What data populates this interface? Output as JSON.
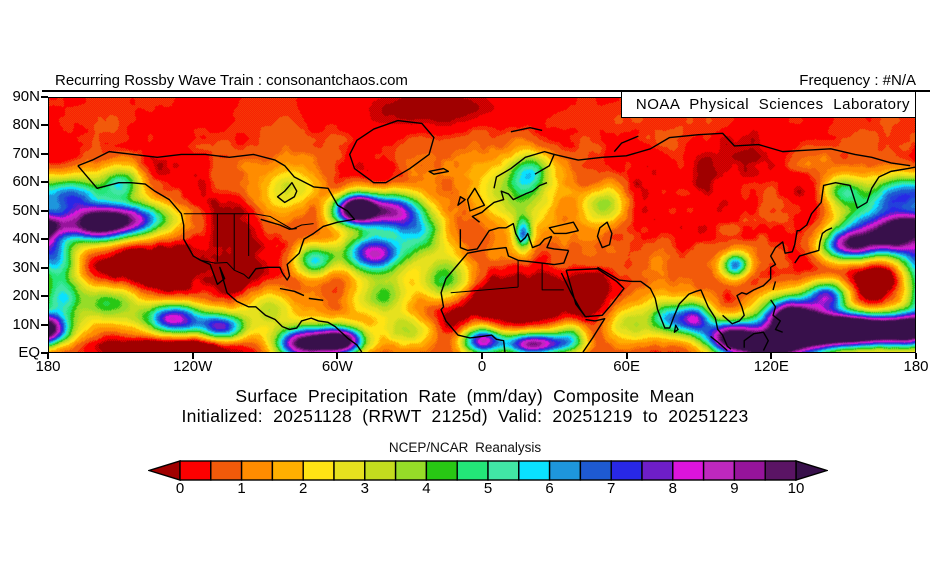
{
  "header": {
    "left": "Recurring Rossby Wave Train : consonantchaos.com",
    "right": "Frequency : #N/A"
  },
  "banner": {
    "text": "NOAA Physical Sciences Laboratory"
  },
  "titles": {
    "line1": "Surface Precipitation Rate (mm/day) Composite Mean",
    "line2": "Initialized: 20251128 (RRWT 2125d) Valid: 20251219 to 20251223",
    "source": "NCEP/NCAR Reanalysis"
  },
  "axes": {
    "lat_labels": [
      {
        "label": "90N",
        "lat": 90
      },
      {
        "label": "80N",
        "lat": 80
      },
      {
        "label": "70N",
        "lat": 70
      },
      {
        "label": "60N",
        "lat": 60
      },
      {
        "label": "50N",
        "lat": 50
      },
      {
        "label": "40N",
        "lat": 40
      },
      {
        "label": "30N",
        "lat": 30
      },
      {
        "label": "20N",
        "lat": 20
      },
      {
        "label": "10N",
        "lat": 10
      },
      {
        "label": "EQ",
        "lat": 0
      }
    ],
    "lon_labels": [
      {
        "label": "180",
        "lon": -180
      },
      {
        "label": "120W",
        "lon": -120
      },
      {
        "label": "60W",
        "lon": -60
      },
      {
        "label": "0",
        "lon": 0
      },
      {
        "label": "60E",
        "lon": 60
      },
      {
        "label": "120E",
        "lon": 120
      },
      {
        "label": "180",
        "lon": 180
      }
    ]
  },
  "chart_data": {
    "type": "heatmap",
    "title": "Surface Precipitation Rate (mm/day) Composite Mean",
    "subtitle": "Initialized: 20251128 (RRWT 2125d) Valid: 20251219 to 20251223",
    "source": "NCEP/NCAR Reanalysis",
    "units": "mm/day",
    "lon_range": [
      -180,
      180
    ],
    "lat_range": [
      0,
      90
    ],
    "colorbar": {
      "ticks": [
        0,
        1,
        2,
        3,
        4,
        5,
        6,
        7,
        8,
        9,
        10
      ],
      "segment_step": 0.5,
      "under_color": "#A00000",
      "over_color": "#38104B",
      "segment_colors": [
        "#FC0000",
        "#F25A0A",
        "#FF8C00",
        "#FFAF00",
        "#FFE414",
        "#E6E11E",
        "#C3DC1E",
        "#96DC28",
        "#28C814",
        "#23E678",
        "#41E6A5",
        "#0AE1FF",
        "#1E96DC",
        "#1E5AD2",
        "#2828E6",
        "#6E1EC8",
        "#DC14DC",
        "#BE28BE",
        "#96149B",
        "#5A1464"
      ]
    },
    "field_base_mm_day": 0.45,
    "feature_format": "[lon, lat, sigma_lon_deg, sigma_lat_deg, amplitude_mm_day]",
    "features": [
      [
        -20,
        86,
        25,
        6,
        -0.8
      ],
      [
        -150,
        47,
        14,
        4.5,
        9.5
      ],
      [
        -163,
        44,
        8,
        4,
        5
      ],
      [
        -137,
        28,
        15,
        7,
        -1.1
      ],
      [
        -155,
        18,
        8,
        5,
        3.8
      ],
      [
        -128,
        12,
        9,
        4,
        7.5
      ],
      [
        -108,
        9,
        7,
        3.5,
        6.5
      ],
      [
        -122,
        2,
        12,
        3,
        -2.2
      ],
      [
        -147,
        2,
        13,
        3,
        -1.6
      ],
      [
        -75,
        3,
        8,
        4,
        9.5
      ],
      [
        -59,
        4,
        7,
        3.5,
        10.5
      ],
      [
        -88,
        15,
        7,
        5,
        2.5
      ],
      [
        -70,
        33,
        6,
        4,
        5.5
      ],
      [
        -45,
        35,
        9,
        5,
        8
      ],
      [
        -38,
        50,
        10,
        4.5,
        8.5
      ],
      [
        -52,
        51,
        5,
        3.5,
        10
      ],
      [
        -25,
        42,
        7,
        5,
        4
      ],
      [
        -15,
        25,
        7,
        6,
        4.5
      ],
      [
        -40,
        20,
        9,
        5,
        3.5
      ],
      [
        -30,
        8,
        8,
        4,
        3
      ],
      [
        -100,
        40,
        13,
        8,
        -0.9
      ],
      [
        -104,
        26,
        6,
        5,
        -1.4
      ],
      [
        -42,
        62,
        6,
        4,
        -0.9
      ],
      [
        5,
        20,
        22,
        8,
        -1.7
      ],
      [
        45,
        24,
        9,
        6,
        -1.3
      ],
      [
        0,
        4,
        6,
        3.5,
        8
      ],
      [
        22,
        3,
        9,
        3,
        9.5
      ],
      [
        37,
        5,
        5,
        4,
        4
      ],
      [
        10,
        55,
        13,
        8,
        3.2
      ],
      [
        20,
        64,
        6,
        5,
        4.2
      ],
      [
        17,
        42,
        2.5,
        4,
        5
      ],
      [
        50,
        52,
        7,
        5,
        3
      ],
      [
        60,
        10,
        8,
        5,
        2.5
      ],
      [
        77,
        12,
        5,
        4,
        4.5
      ],
      [
        88,
        12,
        5,
        4,
        6.5
      ],
      [
        103,
        6,
        8,
        4,
        8.5
      ],
      [
        120,
        2,
        12,
        3.5,
        10.5
      ],
      [
        128,
        13,
        8,
        5,
        9.5
      ],
      [
        141,
        8,
        14,
        4,
        10.5
      ],
      [
        160,
        8,
        13,
        4,
        11
      ],
      [
        178,
        8,
        7,
        4,
        8
      ],
      [
        143,
        20,
        6,
        4,
        7
      ],
      [
        152,
        38,
        8,
        4,
        8.5
      ],
      [
        170,
        40,
        9,
        4,
        8
      ],
      [
        178,
        45,
        7,
        3,
        6.5
      ],
      [
        160,
        47,
        11,
        5,
        4
      ],
      [
        168,
        26,
        9,
        5,
        -1
      ],
      [
        105,
        31,
        4,
        3,
        6
      ],
      [
        -150,
        60,
        6,
        4,
        4.5
      ],
      [
        -170,
        56,
        8,
        5,
        5.5
      ],
      [
        172,
        56,
        8,
        5,
        5
      ],
      [
        150,
        57,
        6,
        4,
        4.5
      ],
      [
        -80,
        57,
        9,
        7,
        2.2
      ],
      [
        -60,
        50,
        5,
        4,
        3
      ],
      [
        -178,
        33,
        7,
        5,
        5.5
      ],
      [
        -175,
        20,
        7,
        6,
        5.5
      ]
    ]
  },
  "map_overlay": {
    "coastlines": [
      "M -168 24 L -160 32 L -151 30 L -146 30 L -140 30.5 L -136 33 L -130 36 L -125 41 L -124 45 L -124 50 L -120 56 L -117 57.5 L -113 59 L -110 66 L -107 64 L -109 60 L -106 69 L -102 72 L -97 74 L -94 74 L -90 77 L -86 78.5 L -83 81 L -80 82 L -77 81.5 L -75 79 L -71 78 L -68 79 L -64 79.5 L -61 81 L -56 85 L -52 87.5 L -50 90",
      "M -97 64 L -94 60.5 L -89 60 L -84 60 L -83 62 L -81 64.5 L -80 63 L -81 59 L -76 55 L -74 50 L -70 48 L -66 45.5 L -60 44 L -53 43 L -56 40 L -60 38 L -64 32 L -70 31.5 L -78 28 L -82 24 L -86 22 L -95 20 L -105 21 L -115 20 L -125 20 L -135 21 L -145 20 L -155 19 L -162 22 L -168 24",
      "M -85 35 L -82 33 L -79 30 L -77 33 L -78 35 L -82 37 Z",
      "M -92 43 L -88 44 L -84 45 L -80 46.5 L -77 46.2",
      "M -84 67.5 L -78 68.5 L -74 70 M -72 71 L -66 71.7",
      "M -45 30 L -53 25 L -55 20 L -52 15 L -45 11 L -35 8 L -25 9 L -20 14 L -22 20 L -30 25 L -40 30 Z",
      "M -22 26 L -16 25 L -14 26 L -20 27 Z",
      "M -5 40 L -6 36 L -3 32 L -1 35 L 1 38 L -5 40 Z M -10 38 L -7 36 L -9 35 Z",
      "M -9 46.5 L -9 53 L -6 54 L -2 53.5 L 3 47 L 7 46 L 10 46 L 13 44.5 L 14 48 L 16 51 L 18 49.5 L 19 48 L 21 53 L 24 52 L 26 50 L 29 49",
      "M 36 54 L 30 53.5 L 27 53 L 29 49 M 36 54 L 34 58.5 L 30 59 L 25 58.5 L 20 58 L 15 57.5 L 11 56 L 10 53 L 5 53.5 L 0 54 L -3 54.5 L -6 55 L -10 59 L -15 64 L -17 69 L -16 74 L -17 75 L -15 79 L -10 84 L -5 85 L 0 84.5 L 4 84 L 6 85.5 L 9 86 L 9.5 90",
      "M -1 44 L -4 42 L 0 40.5 L 2 39 L 5 37 L 9 36 L 8 33 L 11 34 L 13 36 L 18 34 L 21 33 L 24 31 L 27 30 M 5 32 L 6 28 L 12 25 L 18 21 L 26 19 L 30 20 L 28 24 L 22 27",
      "M 28 46 L 33 45 L 38 44 L 40 47 L 35 48 L 30 48 Z M 49 46 L 52 44 L 54 48 L 53 52 L 50 53 L 48 49 Z",
      "M 33 62 L 37 69 L 41 75 L 43 77.5 M 35 61 L 39 73 L 43 77.5 L 50 77 L 54 73 L 59 67.5 L 56 65 L 48 60.5 L 35 61 M 43 78.5 L 47 79 L 51 78.2 L 46 85 L 42 90",
      "M 48 60 L 57 64.5 L 62 65 L 66 65 L 70 67.5 L 72 71 L 73 75 L 76 81.5 L 78 81.5 L 80 77 L 82 73 L 86 69.5 L 89 68.5 L 91 68 L 92 70 L 94 74 L 97 78 L 98 82 L 100 84 L 102 88 L 103.5 89",
      "M 100 77 L 104 80 L 107 79 L 109 77 L 108 74 L 106 70 L 108 69 L 110 69.5 L 113 68 L 117 66.5 L 120 64 L 120 60 L 122 59 L 120 56 L 122 53 L 125 51 L 126 55 L 129 54.5 L 130 52 L 131 47 L 132 47 L 135 45 L 137 41 L 141 37 L 142 31 L 147 30 L 153 31 L 156 39 L 160 37 L 162 32 L 165 28 L 170 26 L 177 25 L 180 24.5",
      "M 30 20 L 40 22 L 50 21 L 60 20.5 L 70 18 L 78 14 L 90 13 L 100 12.5 L 105 17 L 115 16.5 L 125 19 L 135 18.5 L 145 18 L 155 20 L 162 21 L 170 23 L 178 24 M 55 19 L 58 16 L 65 13.5 M 12 12 L 20 10.5 L 25 11.5",
      "M 130 58.5 L 132 56 L 136 55 L 140 54 L 140.5 51 L 141.5 48 L 143 47 L 145.5 46 M 121 68 L 122 65 M 120 71.5 L 122 74 L 121 77 L 124 79 L 122 82 L 125 83",
      "M 109 88.5 L 109 86 L 113 83.5 L 117 83 L 119 86 L 117 89.5 M 95 84.5 L 98 86.5 L 102 89.5 M 80 83 L 81.5 82 L 80.5 80.5 Z"
    ],
    "borders": [
      "M -124 41 L -95 41 L -88 42 L -83 44.5 L -79 46.5 L -75 45 L -70 44.5",
      "M -117 57.5 L -111 58.5 L -106 58.3 L -103 61 L -99 62.5 L -97 64",
      "M -110 58 L -110 41 M -103 41 L -103 61 M -97 41 L -97 56",
      "M 25 58.5 L 25 68 L 34 68 M 15 57.5 L 15 67 M -13 69 L 15 67"
    ]
  }
}
